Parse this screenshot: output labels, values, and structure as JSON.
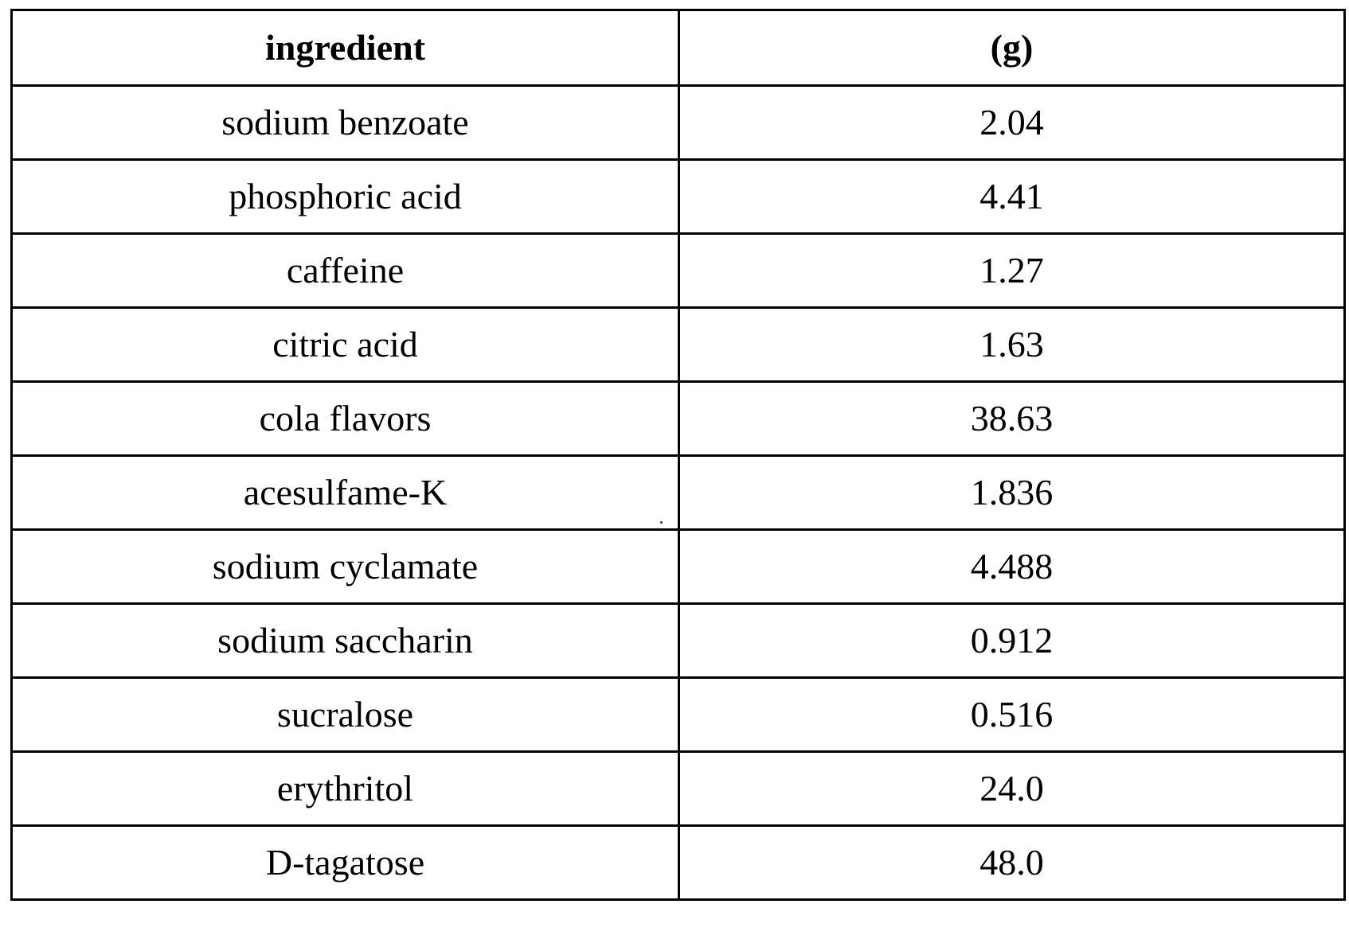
{
  "table": {
    "headers": [
      "ingredient",
      "(g)"
    ],
    "rows": [
      [
        "sodium benzoate",
        "2.04"
      ],
      [
        "phosphoric acid",
        "4.41"
      ],
      [
        "caffeine",
        "1.27"
      ],
      [
        "citric acid",
        "1.63"
      ],
      [
        "cola flavors",
        "38.63"
      ],
      [
        "acesulfame-K",
        "1.836"
      ],
      [
        "sodium cyclamate",
        "4.488"
      ],
      [
        "sodium saccharin",
        "0.912"
      ],
      [
        "sucralose",
        "0.516"
      ],
      [
        "erythritol",
        "24.0"
      ],
      [
        "D-tagatose",
        "48.0"
      ]
    ]
  }
}
